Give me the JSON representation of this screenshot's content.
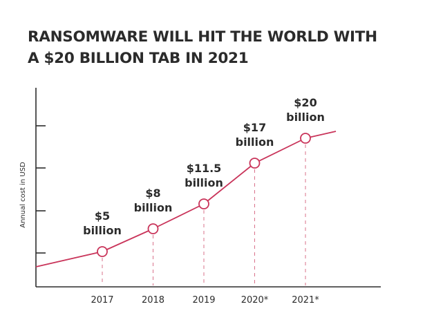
{
  "chart_data": {
    "type": "line",
    "title_lines": [
      "RANSOMWARE WILL HIT THE WORLD WITH",
      "A $20 BILLION TAB IN 2021"
    ],
    "xlabel": "",
    "ylabel": "Annual cost in USD",
    "categories": [
      "2017",
      "2018",
      "2019",
      "2020*",
      "2021*"
    ],
    "values": [
      5,
      8,
      11.5,
      17,
      20
    ],
    "data_labels": [
      [
        "$5",
        "billion"
      ],
      [
        "$8",
        "billion"
      ],
      [
        "$11.5",
        "billion"
      ],
      [
        "$17",
        "billion"
      ],
      [
        "$20",
        "billion"
      ]
    ],
    "y_ticks_count": 4,
    "ylim": [
      0,
      25
    ],
    "grid": false,
    "legend": "none",
    "line_color": "#c9345a",
    "text_color": "#2b2b2b"
  }
}
